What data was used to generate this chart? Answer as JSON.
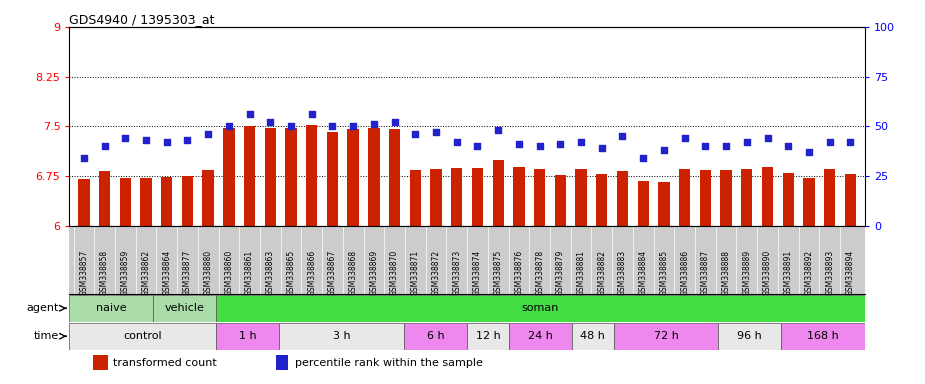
{
  "title": "GDS4940 / 1395303_at",
  "samples": [
    "GSM338857",
    "GSM338858",
    "GSM338859",
    "GSM338862",
    "GSM338864",
    "GSM338877",
    "GSM338880",
    "GSM338860",
    "GSM338861",
    "GSM338863",
    "GSM338865",
    "GSM338866",
    "GSM338867",
    "GSM338868",
    "GSM338869",
    "GSM338870",
    "GSM338871",
    "GSM338872",
    "GSM338873",
    "GSM338874",
    "GSM338875",
    "GSM338876",
    "GSM338878",
    "GSM338879",
    "GSM338881",
    "GSM338882",
    "GSM338883",
    "GSM338884",
    "GSM338885",
    "GSM338886",
    "GSM338887",
    "GSM338888",
    "GSM338889",
    "GSM338890",
    "GSM338891",
    "GSM338892",
    "GSM338893",
    "GSM338894"
  ],
  "bar_values": [
    6.7,
    6.82,
    6.72,
    6.72,
    6.74,
    6.75,
    6.84,
    7.48,
    7.5,
    7.47,
    7.48,
    7.52,
    7.42,
    7.46,
    7.47,
    7.46,
    6.84,
    6.85,
    6.87,
    6.87,
    7.0,
    6.88,
    6.85,
    6.76,
    6.85,
    6.78,
    6.82,
    6.68,
    6.66,
    6.86,
    6.84,
    6.84,
    6.86,
    6.88,
    6.8,
    6.72,
    6.86,
    6.78
  ],
  "dot_values": [
    34,
    40,
    44,
    43,
    42,
    43,
    46,
    50,
    56,
    52,
    50,
    56,
    50,
    50,
    51,
    52,
    46,
    47,
    42,
    40,
    48,
    41,
    40,
    41,
    42,
    39,
    45,
    34,
    38,
    44,
    40,
    40,
    42,
    44,
    40,
    37,
    42,
    42
  ],
  "ylim_left": [
    6,
    9
  ],
  "ylim_right": [
    0,
    100
  ],
  "yticks_left": [
    6,
    6.75,
    7.5,
    8.25,
    9
  ],
  "yticks_left_labels": [
    "6",
    "6.75",
    "7.5",
    "8.25",
    "9"
  ],
  "yticks_right": [
    0,
    25,
    50,
    75,
    100
  ],
  "yticks_right_labels": [
    "0",
    "25",
    "50",
    "75",
    "100"
  ],
  "bar_color": "#cc2200",
  "dot_color": "#2222cc",
  "grid_color": "#000000",
  "agent_groups": [
    {
      "label": "naive",
      "start": 0,
      "end": 4,
      "color": "#aaddaa"
    },
    {
      "label": "vehicle",
      "start": 4,
      "end": 7,
      "color": "#aaddaa"
    },
    {
      "label": "soman",
      "start": 7,
      "end": 38,
      "color": "#44dd44"
    }
  ],
  "time_groups": [
    {
      "label": "control",
      "start": 0,
      "end": 7,
      "color": "#e8e8e8"
    },
    {
      "label": "1 h",
      "start": 7,
      "end": 10,
      "color": "#ee88ee"
    },
    {
      "label": "3 h",
      "start": 10,
      "end": 16,
      "color": "#e8e8e8"
    },
    {
      "label": "6 h",
      "start": 16,
      "end": 19,
      "color": "#ee88ee"
    },
    {
      "label": "12 h",
      "start": 19,
      "end": 21,
      "color": "#e8e8e8"
    },
    {
      "label": "24 h",
      "start": 21,
      "end": 24,
      "color": "#ee88ee"
    },
    {
      "label": "48 h",
      "start": 24,
      "end": 26,
      "color": "#e8e8e8"
    },
    {
      "label": "72 h",
      "start": 26,
      "end": 31,
      "color": "#ee88ee"
    },
    {
      "label": "96 h",
      "start": 31,
      "end": 34,
      "color": "#e8e8e8"
    },
    {
      "label": "168 h",
      "start": 34,
      "end": 38,
      "color": "#ee88ee"
    }
  ],
  "legend_bar_label": "transformed count",
  "legend_dot_label": "percentile rank within the sample",
  "tick_bg_color": "#cccccc"
}
